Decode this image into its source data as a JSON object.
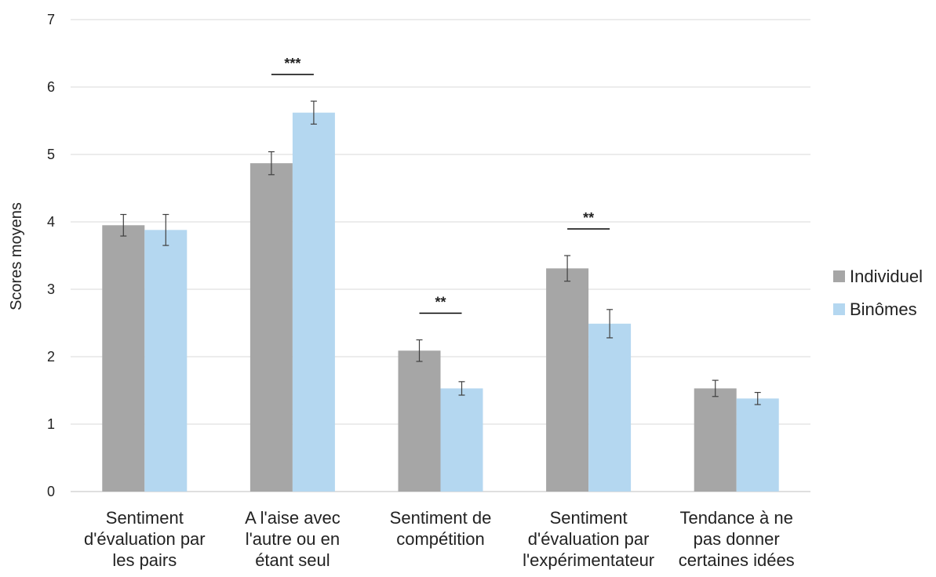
{
  "chart_data": {
    "type": "bar",
    "ylabel": "Scores moyens",
    "ylim": [
      0,
      7
    ],
    "yticks": [
      0,
      1,
      2,
      3,
      4,
      5,
      6,
      7
    ],
    "grid": true,
    "legend_position": "right",
    "categories": [
      [
        "Sentiment",
        "d'évaluation par",
        "les pairs"
      ],
      [
        "A l'aise avec",
        "l'autre ou en",
        "étant seul"
      ],
      [
        "Sentiment de",
        "compétition"
      ],
      [
        "Sentiment",
        "d'évaluation par",
        "l'expérimentateur"
      ],
      [
        "Tendance à ne",
        "pas donner",
        "certaines idées"
      ]
    ],
    "series": [
      {
        "name": "Individuel",
        "color": "#a6a6a6",
        "values": [
          3.95,
          4.87,
          2.09,
          3.31,
          1.53
        ],
        "errors": [
          0.16,
          0.17,
          0.16,
          0.19,
          0.12
        ]
      },
      {
        "name": "Binômes",
        "color": "#b4d7f0",
        "values": [
          3.88,
          5.62,
          1.53,
          2.49,
          1.38
        ],
        "errors": [
          0.23,
          0.17,
          0.1,
          0.21,
          0.09
        ]
      }
    ],
    "significance": [
      {
        "category_index": 1,
        "label": "***"
      },
      {
        "category_index": 2,
        "label": "**"
      },
      {
        "category_index": 3,
        "label": "**"
      }
    ]
  }
}
